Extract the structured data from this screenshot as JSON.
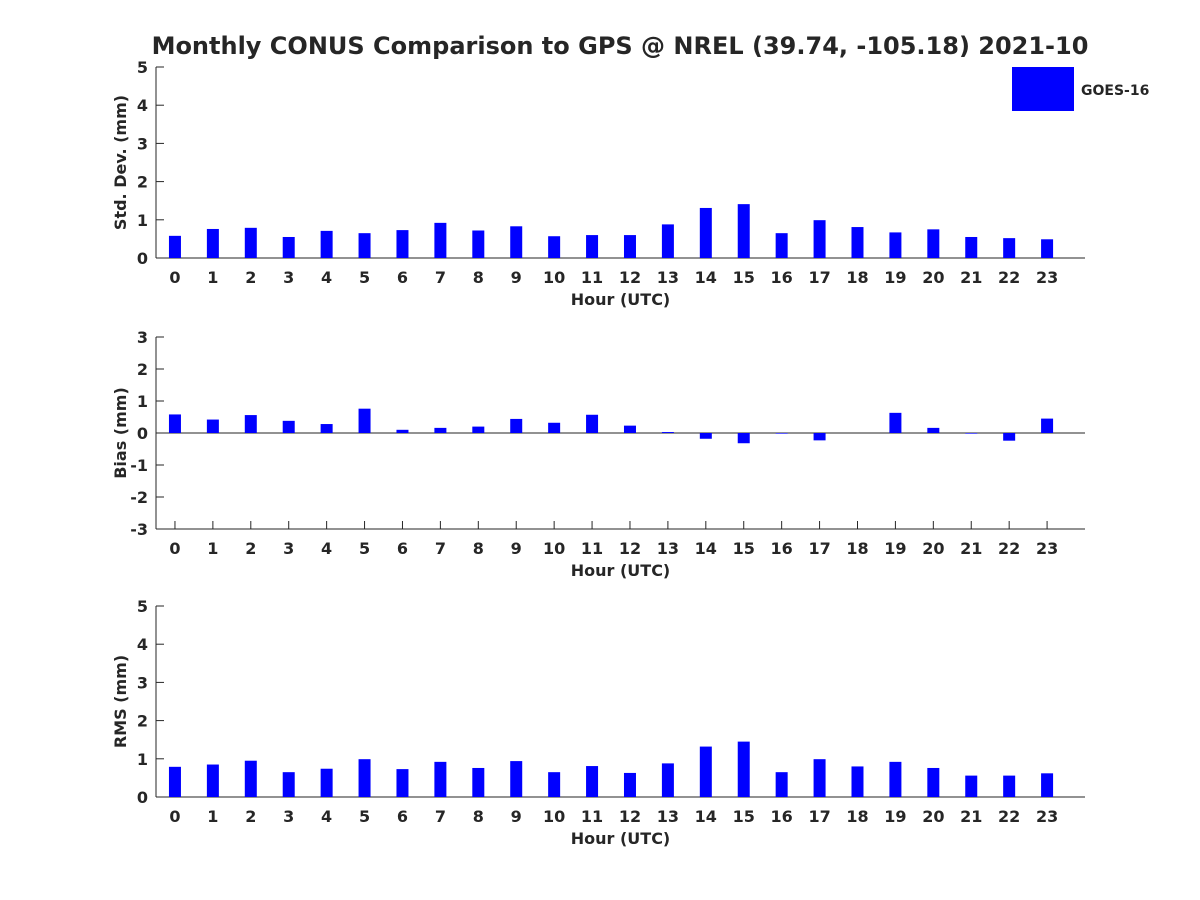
{
  "title": "Monthly CONUS Comparison to GPS @ NREL (39.74, -105.18) 2021-10",
  "legend": {
    "label": "GOES-16",
    "color": "#0000ff",
    "placement": "top-right"
  },
  "chart_data": [
    {
      "type": "bar",
      "categories": [
        "0",
        "1",
        "2",
        "3",
        "4",
        "5",
        "6",
        "7",
        "8",
        "9",
        "10",
        "11",
        "12",
        "13",
        "14",
        "15",
        "16",
        "17",
        "18",
        "19",
        "20",
        "21",
        "22",
        "23"
      ],
      "series": [
        {
          "name": "GOES-16",
          "values": [
            0.58,
            0.76,
            0.79,
            0.55,
            0.71,
            0.65,
            0.73,
            0.92,
            0.72,
            0.83,
            0.57,
            0.6,
            0.6,
            0.88,
            1.31,
            1.41,
            0.65,
            0.99,
            0.81,
            0.67,
            0.75,
            0.55,
            0.52,
            0.49
          ]
        }
      ],
      "xlabel": "Hour (UTC)",
      "ylabel": "Std. Dev. (mm)",
      "ylim": [
        0,
        5
      ],
      "yticks": [
        "0",
        "1",
        "2",
        "3",
        "4",
        "5"
      ],
      "grid": false,
      "color": "#0000ff"
    },
    {
      "type": "bar",
      "categories": [
        "0",
        "1",
        "2",
        "3",
        "4",
        "5",
        "6",
        "7",
        "8",
        "9",
        "10",
        "11",
        "12",
        "13",
        "14",
        "15",
        "16",
        "17",
        "18",
        "19",
        "20",
        "21",
        "22",
        "23"
      ],
      "series": [
        {
          "name": "GOES-16",
          "values": [
            0.58,
            0.42,
            0.56,
            0.38,
            0.28,
            0.76,
            0.1,
            0.16,
            0.2,
            0.44,
            0.32,
            0.57,
            0.23,
            0.03,
            -0.18,
            -0.32,
            -0.02,
            -0.23,
            0.0,
            0.63,
            0.16,
            -0.02,
            -0.24,
            0.45
          ]
        }
      ],
      "xlabel": "Hour (UTC)",
      "ylabel": "Bias (mm)",
      "ylim": [
        -3,
        3
      ],
      "yticks": [
        "-3",
        "-2",
        "-1",
        "0",
        "1",
        "2",
        "3"
      ],
      "grid": false,
      "color": "#0000ff"
    },
    {
      "type": "bar",
      "categories": [
        "0",
        "1",
        "2",
        "3",
        "4",
        "5",
        "6",
        "7",
        "8",
        "9",
        "10",
        "11",
        "12",
        "13",
        "14",
        "15",
        "16",
        "17",
        "18",
        "19",
        "20",
        "21",
        "22",
        "23"
      ],
      "series": [
        {
          "name": "GOES-16",
          "values": [
            0.79,
            0.85,
            0.95,
            0.65,
            0.74,
            0.99,
            0.73,
            0.92,
            0.76,
            0.94,
            0.65,
            0.81,
            0.63,
            0.88,
            1.32,
            1.45,
            0.65,
            0.99,
            0.8,
            0.92,
            0.76,
            0.56,
            0.56,
            0.62
          ]
        }
      ],
      "xlabel": "Hour (UTC)",
      "ylabel": "RMS (mm)",
      "ylim": [
        0,
        5
      ],
      "yticks": [
        "0",
        "1",
        "2",
        "3",
        "4",
        "5"
      ],
      "grid": false,
      "color": "#0000ff"
    }
  ]
}
